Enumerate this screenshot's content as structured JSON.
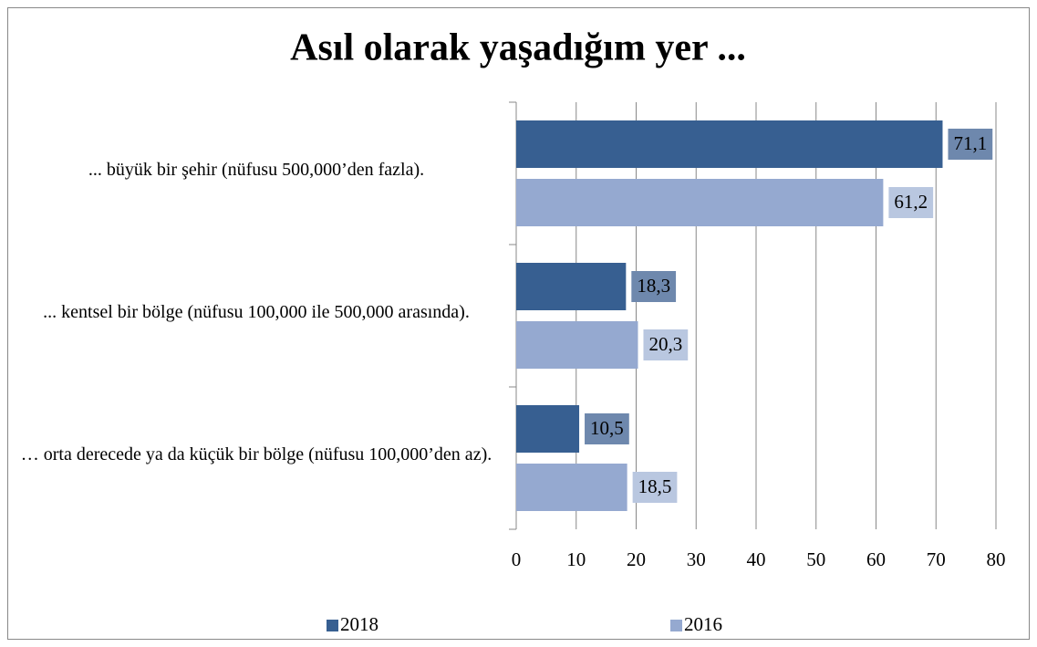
{
  "chart_data": {
    "type": "bar",
    "orientation": "horizontal",
    "title": "Asıl olarak yaşadığım yer ...",
    "categories": [
      "...  büyük bir şehir (nüfusu 500,000’den fazla).",
      "...  kentsel bir bölge (nüfusu 100,000 ile 500,000 arasında).",
      "… orta derecede ya da küçük bir bölge (nüfusu 100,000’den az)."
    ],
    "series": [
      {
        "name": "2018",
        "color": "#375f91",
        "values": [
          71.1,
          18.3,
          10.5
        ],
        "value_labels": [
          "71,1",
          "18,3",
          "10,5"
        ]
      },
      {
        "name": "2016",
        "color": "#95a9d0",
        "values": [
          61.2,
          20.3,
          18.5
        ],
        "value_labels": [
          "61,2",
          "20,3",
          "18,5"
        ]
      }
    ],
    "xlim": [
      0,
      80
    ],
    "xticks": [
      0,
      10,
      20,
      30,
      40,
      50,
      60,
      70,
      80
    ],
    "grid": true,
    "legend": "bottom"
  }
}
